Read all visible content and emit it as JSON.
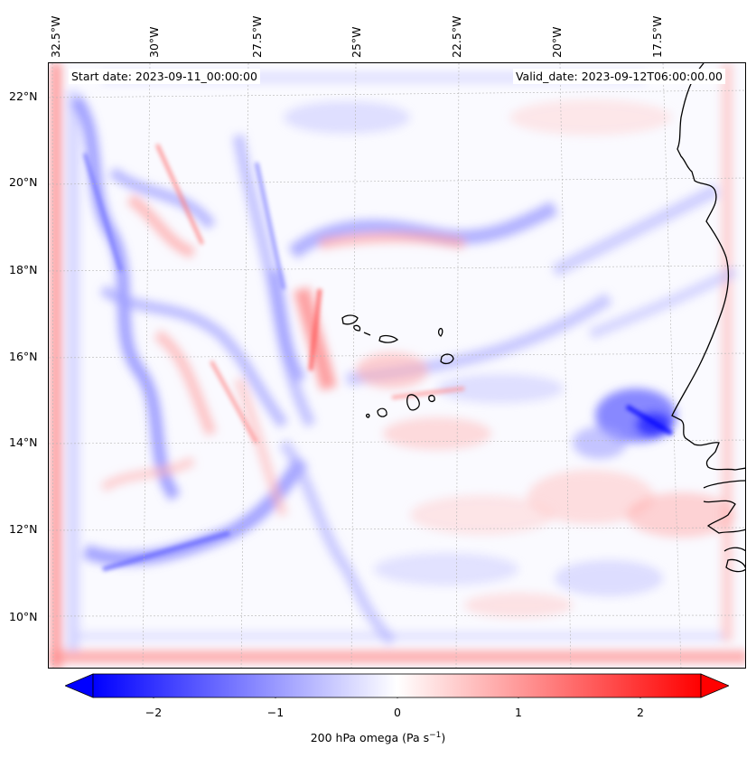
{
  "map": {
    "start_date": "Start date: 2023-09-11_00:00:00",
    "valid_date": "Valid_date: 2023-09-12T06:00:00.00",
    "lon_labels": [
      "32.5°W",
      "30°W",
      "27.5°W",
      "25°W",
      "22.5°W",
      "20°W",
      "17.5°W"
    ],
    "lat_labels": [
      "22°N",
      "20°N",
      "18°N",
      "16°N",
      "14°N",
      "12°N",
      "10°N"
    ],
    "lon_range": [
      -33.0,
      -15.0
    ],
    "lat_range": [
      8.8,
      22.8
    ],
    "gridlines": true,
    "projection_hint": "lambert-like"
  },
  "colorbar": {
    "label_main": "200 hPa omega (Pa s",
    "label_exp": "−1",
    "label_end": ")",
    "ticks": [
      "−2",
      "−1",
      "0",
      "1",
      "2"
    ],
    "tick_values": [
      -2,
      -1,
      0,
      1,
      2
    ],
    "range": [
      -2.5,
      2.5
    ],
    "extend": "both",
    "colormap": "bwr",
    "low_color": "#0000ff",
    "mid_color": "#ffffff",
    "high_color": "#ff0000"
  }
}
